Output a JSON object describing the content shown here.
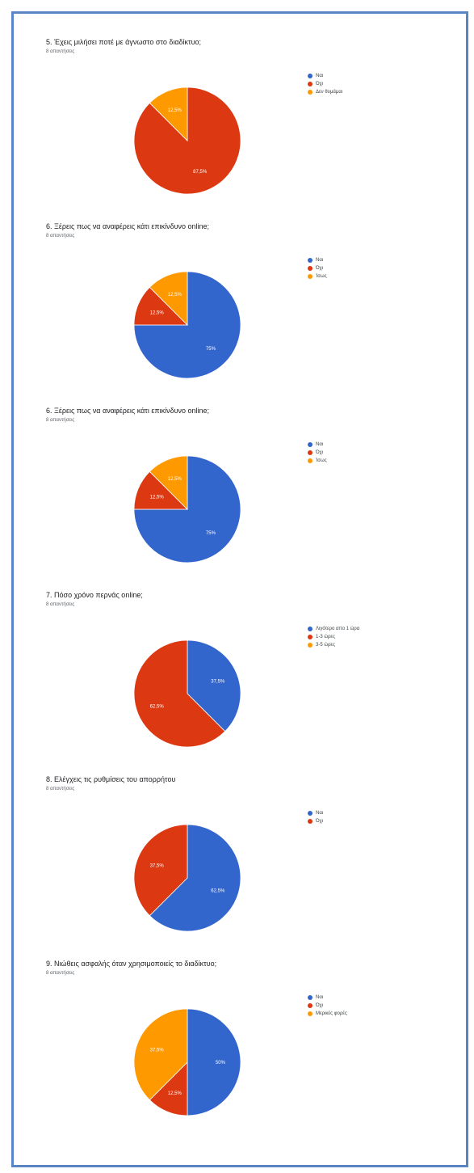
{
  "colors": {
    "blue": "#3366cc",
    "red": "#dc3912",
    "orange": "#ff9900"
  },
  "chart_data": [
    {
      "type": "pie",
      "title": "5. Έχεις μιλήσει ποτέ με άγνωστο στο διαδίκτυο;",
      "subtitle": "8 απαντήσεις",
      "categories": [
        "Ναι",
        "Όχι",
        "Δεν θυμάμαι"
      ],
      "values": [
        0,
        87.5,
        12.5
      ],
      "labels": [
        "",
        "87,5%",
        "12,5%"
      ],
      "colors": [
        "#3366cc",
        "#dc3912",
        "#ff9900"
      ]
    },
    {
      "type": "pie",
      "title": "6. Ξέρεις πως να αναφέρεις κάτι επικίνδυνο online;",
      "subtitle": "8 απαντήσεις",
      "categories": [
        "Ναι",
        "Όχι",
        "Ίσως"
      ],
      "values": [
        75,
        12.5,
        12.5
      ],
      "labels": [
        "75%",
        "12,5%",
        "12,5%"
      ],
      "colors": [
        "#3366cc",
        "#dc3912",
        "#ff9900"
      ]
    },
    {
      "type": "pie",
      "title": "6. Ξέρεις πως να αναφέρεις κάτι επικίνδυνο online;",
      "subtitle": "8 απαντήσεις",
      "categories": [
        "Ναι",
        "Όχι",
        "Ίσως"
      ],
      "values": [
        75,
        12.5,
        12.5
      ],
      "labels": [
        "75%",
        "12,5%",
        "12,5%"
      ],
      "colors": [
        "#3366cc",
        "#dc3912",
        "#ff9900"
      ]
    },
    {
      "type": "pie",
      "title": "7. Πόσο χρόνο περνάς online;",
      "subtitle": "8 απαντήσεις",
      "categories": [
        "Λιγότερο απο 1 ώρα",
        "1-3 ώρες",
        "3-5 ώρες"
      ],
      "values": [
        37.5,
        62.5,
        0
      ],
      "labels": [
        "37,5%",
        "62,5%",
        ""
      ],
      "colors": [
        "#3366cc",
        "#dc3912",
        "#ff9900"
      ]
    },
    {
      "type": "pie",
      "title": "8. Ελέγχεις τις ρυθμίσεις του απορρήτου",
      "subtitle": "8 απαντήσεις",
      "categories": [
        "Ναι",
        "Όχι"
      ],
      "values": [
        62.5,
        37.5
      ],
      "labels": [
        "62,5%",
        "37,5%"
      ],
      "colors": [
        "#3366cc",
        "#dc3912"
      ]
    },
    {
      "type": "pie",
      "title": "9. Νιώθεις ασφαλής όταν χρησιμοποιείς το διαδίκτυο;",
      "subtitle": "8 απαντήσεις",
      "categories": [
        "Ναι",
        "Όχι",
        "Μερικές φορές"
      ],
      "values": [
        50,
        12.5,
        37.5
      ],
      "labels": [
        "50%",
        "12,5%",
        "37,5%"
      ],
      "colors": [
        "#3366cc",
        "#dc3912",
        "#ff9900"
      ]
    }
  ]
}
